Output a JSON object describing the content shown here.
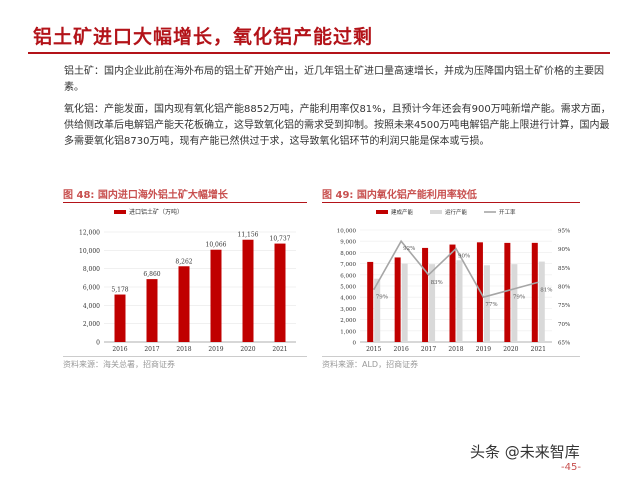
{
  "header": {
    "title": "铝土矿进口大幅增长，氧化铝产能过剩"
  },
  "paragraphs": [
    {
      "text": "铝土矿：国内企业此前在海外布局的铝土矿开始产出，近几年铝土矿进口量高速增长，并成为压降国内铝土矿价格的主要因素。"
    },
    {
      "text": "氧化铝：产能发面，国内现有氧化铝产能8852万吨，产能利用率仅81%，且预计今年还会有900万吨新增产能。需求方面，供给侧改革后电解铝产能天花板确立，这导致氧化铝的需求受到抑制。按照未来4500万吨电解铝产能上限进行计算，国内最多需要氧化铝8730万吨，现有产能已然供过于求，这导致氧化铝环节的利润只能是保本或亏损。"
    }
  ],
  "figures": {
    "left": {
      "label": "图 48:  国内进口海外铝土矿大幅增长",
      "source": "资料来源：海关总署，招商证券"
    },
    "right": {
      "label": "图 49:  国内氧化铝产能利用率较低",
      "source": "资料来源：ALD，招商证券"
    }
  },
  "chart_data": [
    {
      "type": "bar",
      "categories": [
        "2016",
        "2017",
        "2018",
        "2019",
        "2020",
        "2021"
      ],
      "series": [
        {
          "name": "进口铝土矿（万吨）",
          "values": [
            5178,
            6860,
            8262,
            10066,
            11156,
            10737
          ],
          "color": "#c00000"
        }
      ],
      "data_labels": [
        "5,178",
        "6,860",
        "8,262",
        "10,066",
        "11,156",
        "10,737"
      ],
      "yticks": [
        "0",
        "2,000",
        "4,000",
        "6,000",
        "8,000",
        "10,000",
        "12,000"
      ],
      "ylim": [
        0,
        12000
      ],
      "legend_position": "top-left",
      "grid": true
    },
    {
      "type": "bar",
      "categories": [
        "2015",
        "2016",
        "2017",
        "2018",
        "2019",
        "2020",
        "2021"
      ],
      "series": [
        {
          "name": "建成产能",
          "values": [
            7150,
            7550,
            8400,
            8700,
            8900,
            8850,
            8852
          ],
          "color": "#c00000"
        },
        {
          "name": "运行产能",
          "values": [
            5650,
            7000,
            6950,
            7300,
            6850,
            6950,
            7180
          ],
          "color": "#d9d9d9"
        },
        {
          "name": "开工率",
          "axis": "right",
          "values": [
            79,
            92,
            83,
            90,
            77,
            79,
            81
          ],
          "color": "#a6a6a6"
        }
      ],
      "line_labels": [
        "79%",
        "92%",
        "83%",
        "90%",
        "77%",
        "79%",
        "81%"
      ],
      "y_left_ticks": [
        "0",
        "1,000",
        "2,000",
        "3,000",
        "4,000",
        "5,000",
        "6,000",
        "7,000",
        "8,000",
        "9,000",
        "10,000"
      ],
      "y_left_lim": [
        0,
        10000
      ],
      "y_right_ticks": [
        "65%",
        "70%",
        "75%",
        "80%",
        "85%",
        "90%",
        "95%"
      ],
      "y_right_lim": [
        65,
        95
      ],
      "legend_position": "top",
      "grid": true
    }
  ],
  "footer": {
    "brand": "头条 @未来智库",
    "page": "-45-"
  }
}
